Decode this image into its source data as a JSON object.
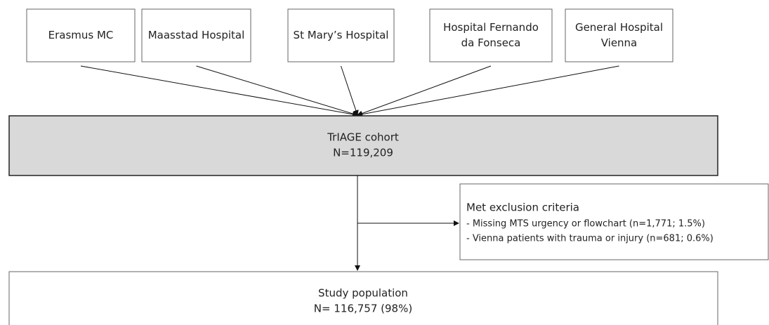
{
  "sources": [
    [
      "Erasmus MC"
    ],
    [
      "Maasstad Hospital"
    ],
    [
      "St Mary’s Hospital"
    ],
    [
      "Hospital Fernando",
      "da Fonseca"
    ],
    [
      "General Hospital",
      "Vienna"
    ]
  ],
  "cohort": {
    "title": "TrIAGE cohort",
    "n": "N=119,209"
  },
  "exclusion": {
    "title": "Met exclusion criteria",
    "items": [
      "- Missing MTS urgency or flowchart (n=1,771; 1.5%)",
      "- Vienna patients with trauma or injury (n=681; 0.6%)"
    ]
  },
  "population": {
    "title": "Study population",
    "n": "N= 116,757 (98%)"
  }
}
